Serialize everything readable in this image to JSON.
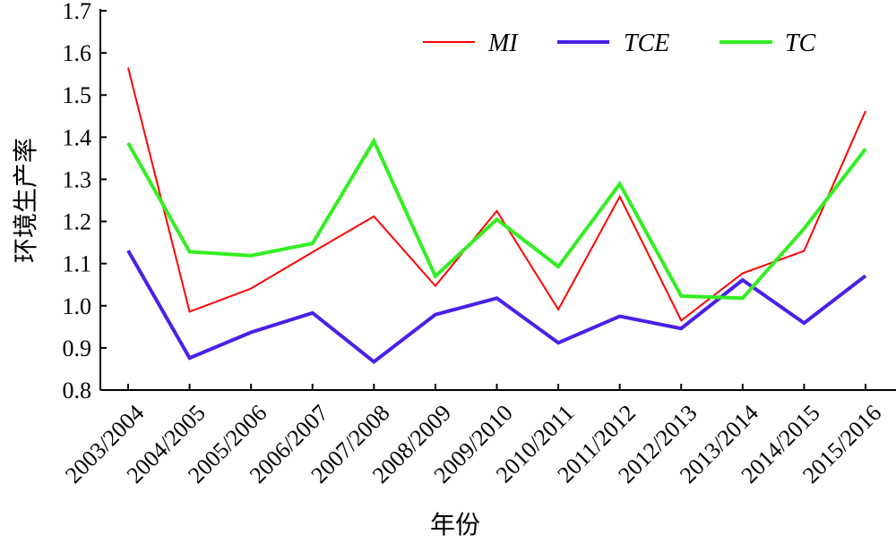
{
  "chart_data": {
    "type": "line",
    "title": "",
    "xlabel": "年份",
    "ylabel": "环境生产率",
    "ylim": [
      0.8,
      1.7
    ],
    "yticks": [
      "0.8",
      "0.9",
      "1.0",
      "1.1",
      "1.2",
      "1.3",
      "1.4",
      "1.5",
      "1.6",
      "1.7"
    ],
    "categories": [
      "2003/2004",
      "2004/2005",
      "2005/2006",
      "2006/2007",
      "2007/2008",
      "2008/2009",
      "2009/2010",
      "2010/2011",
      "2011/2012",
      "2012/2013",
      "2013/2014",
      "2014/2015",
      "2015/2016"
    ],
    "legend_position": "top-right",
    "grid": false,
    "series": [
      {
        "name": "MI",
        "color": "#ff0000",
        "values": [
          1.565,
          0.986,
          1.041,
          1.127,
          1.212,
          1.047,
          1.225,
          0.991,
          1.259,
          0.965,
          1.077,
          1.13,
          1.462
        ]
      },
      {
        "name": "TCE",
        "color": "#4a1fe8",
        "values": [
          1.131,
          0.876,
          0.937,
          0.983,
          0.867,
          0.979,
          1.018,
          0.912,
          0.975,
          0.946,
          1.061,
          0.959,
          1.071
        ]
      },
      {
        "name": "TC",
        "color": "#33ee22",
        "values": [
          1.386,
          1.128,
          1.119,
          1.148,
          1.391,
          1.07,
          1.205,
          1.093,
          1.289,
          1.023,
          1.018,
          1.183,
          1.372
        ]
      }
    ]
  }
}
